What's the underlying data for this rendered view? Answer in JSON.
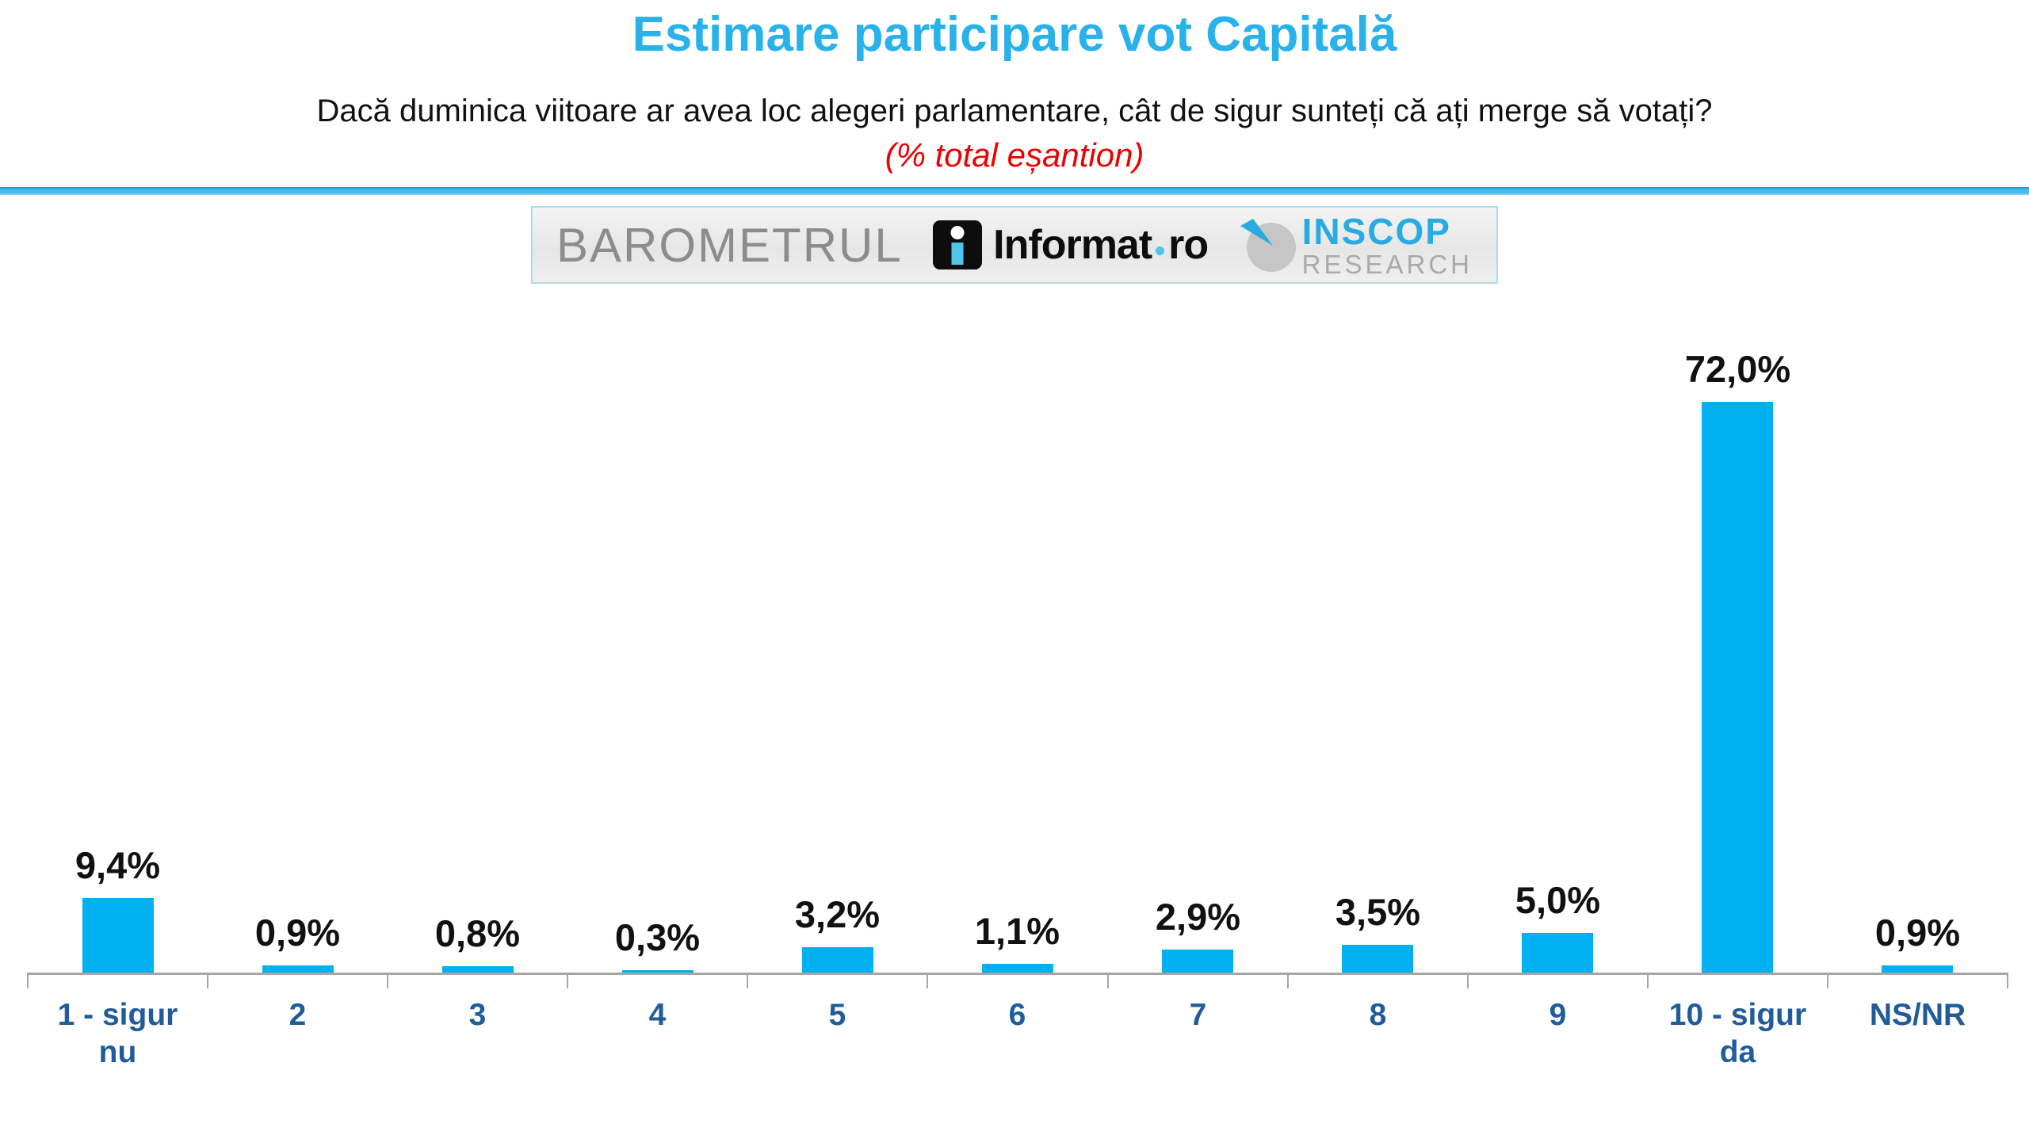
{
  "header": {
    "title": "Estimare participare vot Capitală",
    "subtitle": "Dacă duminica viitoare ar avea loc alegeri parlamentare, cât de sigur sunteți că ați merge să votați?",
    "sample_note": "(% total eșantion)"
  },
  "banner": {
    "barometrul": "BAROMETRUL",
    "informat_name": "Informat",
    "informat_tld": "ro",
    "inscop_name": "INSCOP",
    "inscop_sub": "RESEARCH"
  },
  "chart_data": {
    "type": "bar",
    "title": "Estimare participare vot Capitală",
    "categories": [
      "1 - sigur\nnu",
      "2",
      "3",
      "4",
      "5",
      "6",
      "7",
      "8",
      "9",
      "10 - sigur\nda",
      "NS/NR"
    ],
    "values": [
      9.4,
      0.9,
      0.8,
      0.3,
      3.2,
      1.1,
      2.9,
      3.5,
      5.0,
      72.0,
      0.9
    ],
    "value_labels": [
      "9,4%",
      "0,9%",
      "0,8%",
      "0,3%",
      "3,2%",
      "1,1%",
      "2,9%",
      "3,5%",
      "5,0%",
      "72,0%",
      "0,9%"
    ],
    "xlabel": "",
    "ylabel": "",
    "ylim": [
      0,
      80
    ],
    "grid": false,
    "legend": false,
    "bar_color": "#00b0f0",
    "value_label_color": "#111111",
    "category_label_color": "#1f5c99",
    "axis_color": "#a6a6a6",
    "title_color": "#29b2ea",
    "note_color": "#ee0000"
  }
}
